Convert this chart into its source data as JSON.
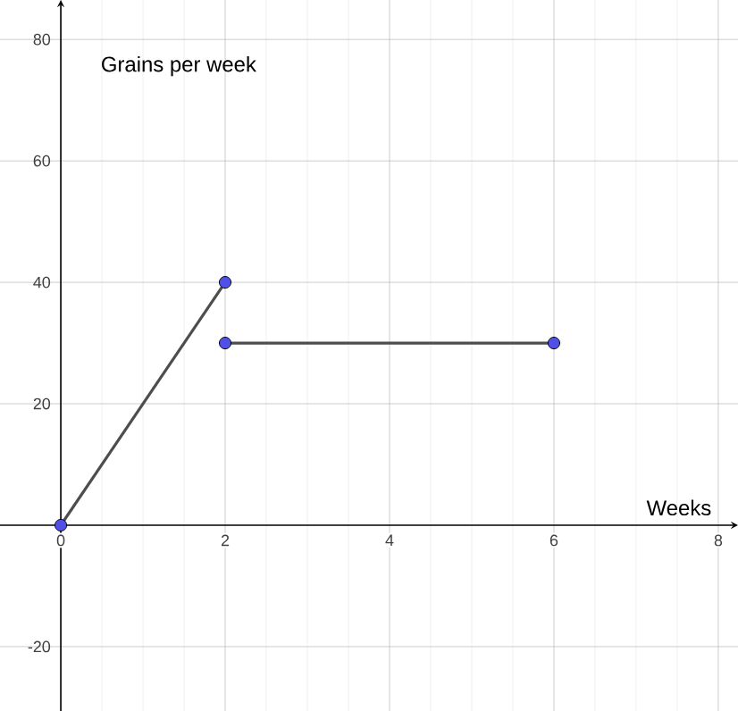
{
  "chart_data": {
    "type": "line",
    "xlabel": "Weeks",
    "ylabel": "Grains per week",
    "series": [
      {
        "color": "#4d4d4d",
        "marker": "none",
        "x": [
          0,
          2
        ],
        "values": [
          0,
          40
        ]
      },
      {
        "color": "#4d4d4d",
        "marker": "none",
        "x": [
          2,
          6
        ],
        "values": [
          30,
          30
        ]
      },
      {
        "type": "scatter",
        "color": "#5050e6",
        "marker": "circle",
        "x": [
          0,
          2,
          6
        ],
        "values": [
          0,
          30,
          30
        ]
      },
      {
        "type": "scatter",
        "color": "#5050e6",
        "marker": "circle",
        "x": [
          2
        ],
        "values": [
          40
        ]
      }
    ],
    "xlim": [
      -0.74,
      8.24
    ],
    "ylim": [
      -30.6,
      86.5
    ],
    "xticks": [
      0,
      2,
      4,
      6,
      8
    ],
    "yticks": [
      -20,
      20,
      40,
      60,
      80
    ],
    "grid": true
  }
}
